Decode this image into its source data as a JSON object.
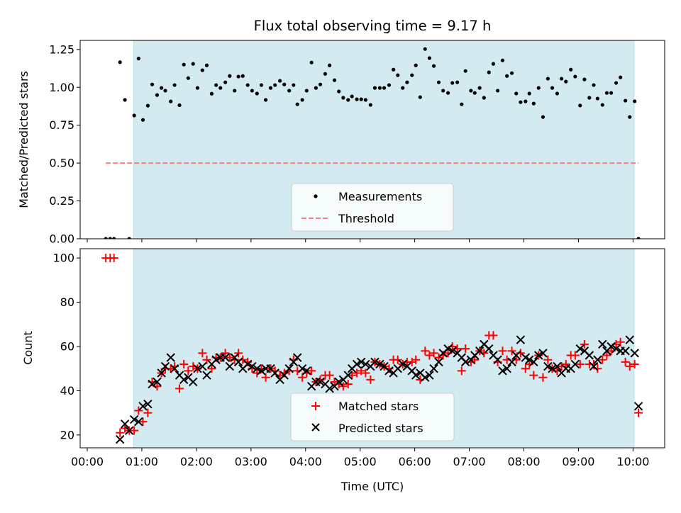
{
  "chart_data": [
    {
      "type": "scatter",
      "title": "Flux total observing time = 9.17 h",
      "xlabel": "",
      "ylabel": "Matched/Predicted stars",
      "xlim": [
        -0.13,
        10.58
      ],
      "ylim": [
        0,
        1.31
      ],
      "yticks": [
        "0.00",
        "0.25",
        "0.50",
        "0.75",
        "1.00",
        "1.25"
      ],
      "yticks_values": [
        0,
        0.25,
        0.5,
        0.75,
        1.0,
        1.25
      ],
      "shaded_span_hours": [
        0.85,
        10.02
      ],
      "threshold": {
        "value": 0.5,
        "from": 0.34,
        "to": 10.1,
        "color": "#ff7f7f"
      },
      "legend": {
        "position": "lower-center",
        "entries": [
          "Measurements",
          "Threshold"
        ]
      },
      "series": [
        {
          "name": "Measurements",
          "color": "#000000",
          "x": [
            0.34,
            0.42,
            0.49,
            0.6,
            0.69,
            0.77,
            0.86,
            0.94,
            1.02,
            1.11,
            1.19,
            1.28,
            1.36,
            1.43,
            1.53,
            1.6,
            1.69,
            1.77,
            1.85,
            1.94,
            2.02,
            2.11,
            2.19,
            2.28,
            2.36,
            2.44,
            2.53,
            2.61,
            2.7,
            2.77,
            2.85,
            2.94,
            3.02,
            3.11,
            3.19,
            3.27,
            3.36,
            3.44,
            3.53,
            3.61,
            3.7,
            3.78,
            3.85,
            3.94,
            4.02,
            4.11,
            4.19,
            4.27,
            4.36,
            4.44,
            4.53,
            4.61,
            4.69,
            4.78,
            4.85,
            4.94,
            5.02,
            5.1,
            5.19,
            5.27,
            5.36,
            5.44,
            5.53,
            5.61,
            5.69,
            5.78,
            5.86,
            5.95,
            6.02,
            6.1,
            6.19,
            6.27,
            6.35,
            6.44,
            6.52,
            6.61,
            6.69,
            6.78,
            6.86,
            6.93,
            7.03,
            7.1,
            7.19,
            7.27,
            7.36,
            7.44,
            7.52,
            7.61,
            7.69,
            7.78,
            7.86,
            7.94,
            8.03,
            8.1,
            8.18,
            8.27,
            8.35,
            8.44,
            8.52,
            8.61,
            8.69,
            8.77,
            8.86,
            8.94,
            9.03,
            9.11,
            9.2,
            9.28,
            9.35,
            9.44,
            9.52,
            9.6,
            9.69,
            9.77,
            9.86,
            9.94,
            10.03,
            10.1
          ],
          "y": [
            0,
            0,
            0,
            1.166,
            0.917,
            0,
            0.814,
            1.19,
            0.785,
            0.879,
            1.019,
            0.949,
            0.996,
            0.978,
            0.907,
            1.015,
            0.882,
            1.15,
            1.061,
            1.155,
            0.996,
            1.113,
            1.145,
            0.958,
            1.015,
            0.996,
            1.033,
            1.075,
            0.978,
            1.071,
            1.075,
            1.015,
            0.978,
            0.959,
            1.015,
            0.917,
            0.996,
            1.015,
            1.043,
            1.019,
            0.978,
            1.015,
            0.888,
            0.917,
            0.978,
            1.164,
            0.996,
            1.019,
            1.089,
            1.145,
            1.047,
            0.973,
            0.931,
            0.917,
            0.94,
            0.921,
            0.921,
            0.917,
            0.884,
            0.996,
            0.996,
            0.996,
            1.015,
            1.117,
            1.08,
            0.996,
            1.033,
            1.08,
            1.145,
            0.935,
            1.253,
            1.193,
            1.141,
            1.033,
            0.978,
            0.963,
            1.029,
            1.033,
            0.888,
            1.108,
            0.978,
            0.963,
            0.996,
            0.931,
            1.099,
            1.155,
            0.978,
            1.178,
            1.075,
            1.094,
            0.959,
            0.902,
            0.907,
            0.959,
            0.893,
            0.996,
            0.804,
            1.057,
            0.996,
            0.959,
            1.057,
            1.038,
            1.117,
            1.071,
            0.88,
            1.052,
            0.931,
            1.015,
            0.926,
            0.884,
            0.963,
            0.963,
            1.029,
            1.066,
            0.912,
            0.804,
            0.908,
            0
          ]
        }
      ]
    },
    {
      "type": "scatter",
      "title": "",
      "xlabel": "Time (UTC)",
      "ylabel": "Count",
      "xlim": [
        -0.13,
        10.58
      ],
      "ylim": [
        14.2,
        104.2
      ],
      "xticks": [
        "00:00",
        "01:00",
        "02:00",
        "03:00",
        "04:00",
        "05:00",
        "06:00",
        "07:00",
        "08:00",
        "09:00",
        "10:00"
      ],
      "xticks_values": [
        0,
        1,
        2,
        3,
        4,
        5,
        6,
        7,
        8,
        9,
        10
      ],
      "yticks": [
        "20",
        "40",
        "60",
        "80",
        "100"
      ],
      "yticks_values": [
        20,
        40,
        60,
        80,
        100
      ],
      "shaded_span_hours": [
        0.85,
        10.02
      ],
      "legend": {
        "position": "lower-center",
        "entries": [
          "Matched stars",
          "Predicted stars"
        ]
      },
      "series": [
        {
          "name": "Matched stars",
          "marker": "+",
          "color": "#ff0000",
          "x": [
            0.34,
            0.42,
            0.49,
            0.6,
            0.69,
            0.77,
            0.86,
            0.94,
            1.02,
            1.11,
            1.19,
            1.28,
            1.36,
            1.43,
            1.53,
            1.6,
            1.69,
            1.77,
            1.85,
            1.94,
            2.02,
            2.11,
            2.19,
            2.28,
            2.36,
            2.44,
            2.53,
            2.61,
            2.7,
            2.77,
            2.85,
            2.94,
            3.02,
            3.11,
            3.19,
            3.27,
            3.36,
            3.44,
            3.53,
            3.61,
            3.7,
            3.78,
            3.85,
            3.94,
            4.02,
            4.11,
            4.19,
            4.27,
            4.36,
            4.44,
            4.53,
            4.61,
            4.69,
            4.78,
            4.85,
            4.94,
            5.02,
            5.1,
            5.19,
            5.27,
            5.36,
            5.44,
            5.53,
            5.61,
            5.69,
            5.78,
            5.86,
            5.95,
            6.02,
            6.1,
            6.19,
            6.27,
            6.35,
            6.44,
            6.52,
            6.61,
            6.69,
            6.78,
            6.86,
            6.93,
            7.03,
            7.1,
            7.19,
            7.27,
            7.36,
            7.44,
            7.52,
            7.61,
            7.69,
            7.78,
            7.86,
            7.94,
            8.03,
            8.1,
            8.18,
            8.27,
            8.35,
            8.44,
            8.52,
            8.61,
            8.69,
            8.77,
            8.86,
            8.94,
            9.03,
            9.11,
            9.2,
            9.28,
            9.35,
            9.44,
            9.52,
            9.6,
            9.69,
            9.77,
            9.86,
            9.94,
            10.03,
            10.1
          ],
          "y": [
            100,
            100,
            100,
            21,
            23,
            22,
            22,
            31,
            26,
            30,
            44,
            42,
            48,
            50,
            50,
            51,
            41,
            52,
            49,
            51,
            50,
            57,
            54,
            50,
            55,
            55,
            57,
            55,
            54,
            57,
            54,
            53,
            50,
            48,
            50,
            46,
            50,
            49,
            47,
            48,
            49,
            54,
            49,
            46,
            48,
            49,
            44,
            45,
            47,
            47,
            44,
            43,
            42,
            43,
            47,
            48,
            49,
            48,
            45,
            53,
            52,
            51,
            50,
            54,
            54,
            52,
            53,
            53,
            54,
            45,
            58,
            56,
            57,
            55,
            56,
            57,
            60,
            59,
            49,
            59,
            53,
            54,
            58,
            57,
            65,
            65,
            53,
            58,
            54,
            58,
            54,
            57,
            50,
            52,
            47,
            56,
            46,
            54,
            50,
            49,
            51,
            52,
            56,
            56,
            52,
            61,
            52,
            52,
            50,
            54,
            56,
            58,
            61,
            62,
            53,
            51,
            52,
            30
          ]
        },
        {
          "name": "Predicted stars",
          "marker": "x",
          "color": "#000000",
          "x": [
            0.6,
            0.69,
            0.77,
            0.86,
            0.94,
            1.02,
            1.11,
            1.19,
            1.28,
            1.36,
            1.43,
            1.53,
            1.6,
            1.69,
            1.77,
            1.85,
            1.94,
            2.02,
            2.11,
            2.19,
            2.28,
            2.36,
            2.44,
            2.53,
            2.61,
            2.7,
            2.77,
            2.85,
            2.94,
            3.02,
            3.11,
            3.19,
            3.27,
            3.36,
            3.44,
            3.53,
            3.61,
            3.7,
            3.78,
            3.85,
            3.94,
            4.02,
            4.11,
            4.19,
            4.27,
            4.36,
            4.44,
            4.53,
            4.61,
            4.69,
            4.78,
            4.85,
            4.94,
            5.02,
            5.1,
            5.19,
            5.27,
            5.36,
            5.44,
            5.53,
            5.61,
            5.69,
            5.78,
            5.86,
            5.95,
            6.02,
            6.1,
            6.19,
            6.27,
            6.35,
            6.44,
            6.52,
            6.61,
            6.69,
            6.78,
            6.86,
            6.93,
            7.03,
            7.1,
            7.19,
            7.27,
            7.36,
            7.44,
            7.52,
            7.61,
            7.69,
            7.78,
            7.86,
            7.94,
            8.03,
            8.1,
            8.18,
            8.27,
            8.35,
            8.44,
            8.52,
            8.61,
            8.69,
            8.77,
            8.86,
            8.94,
            9.03,
            9.11,
            9.2,
            9.28,
            9.35,
            9.44,
            9.52,
            9.6,
            9.69,
            9.77,
            9.86,
            9.94,
            10.03,
            10.1
          ],
          "y": [
            18,
            25,
            22,
            27,
            26,
            33,
            34,
            43,
            44,
            48,
            51,
            55,
            50,
            47,
            45,
            46,
            44,
            50,
            51,
            47,
            52,
            54,
            55,
            55,
            51,
            55,
            53,
            50,
            52,
            51,
            50,
            49,
            50,
            50,
            48,
            45,
            47,
            50,
            53,
            55,
            50,
            49,
            42,
            44,
            44,
            43,
            41,
            42,
            44,
            45,
            47,
            50,
            52,
            53,
            52,
            51,
            53,
            52,
            51,
            49,
            48,
            50,
            52,
            51,
            49,
            47,
            48,
            46,
            47,
            50,
            53,
            57,
            59,
            58,
            57,
            55,
            53,
            54,
            56,
            58,
            61,
            59,
            56,
            54,
            49,
            50,
            53,
            56,
            63,
            55,
            54,
            53,
            56,
            57,
            51,
            50,
            51,
            48,
            50,
            50,
            52,
            59,
            58,
            56,
            51,
            54,
            61,
            58,
            60,
            59,
            58,
            58,
            63,
            57,
            33
          ]
        }
      ]
    }
  ]
}
